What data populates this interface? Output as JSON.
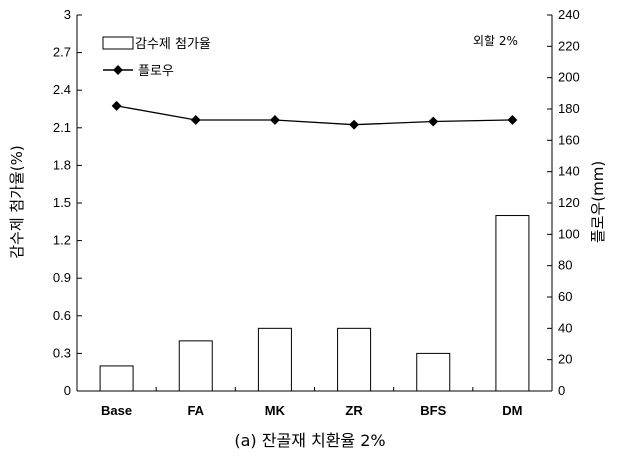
{
  "chart_data": {
    "type": "bar",
    "caption": "(a) 잔골재 치환율 2%",
    "annotation": "외할 2%",
    "categories": [
      "Base",
      "FA",
      "MK",
      "ZR",
      "BFS",
      "DM"
    ],
    "y_left": {
      "label": "감수제 첨가율(%)",
      "range": [
        0,
        3
      ],
      "ticks": [
        "0",
        "0.3",
        "0.6",
        "0.9",
        "1.2",
        "1.5",
        "1.8",
        "2.1",
        "2.4",
        "2.7",
        "3"
      ]
    },
    "y_right": {
      "label": "플로우(mm)",
      "range": [
        0,
        240
      ],
      "ticks": [
        "0",
        "20",
        "40",
        "60",
        "80",
        "100",
        "120",
        "140",
        "160",
        "180",
        "200",
        "220",
        "240"
      ]
    },
    "series": [
      {
        "name": "감수제 첨가율",
        "kind": "bar",
        "axis": "left",
        "color": "#ffffff",
        "stroke": "#000000",
        "values": [
          0.2,
          0.4,
          0.5,
          0.5,
          0.3,
          1.4
        ]
      },
      {
        "name": "플로우",
        "kind": "line",
        "axis": "right",
        "marker": "diamond",
        "color": "#000000",
        "values": [
          182,
          173,
          173,
          170,
          172,
          173
        ]
      }
    ],
    "legend_position": "top-left",
    "grid": false
  }
}
